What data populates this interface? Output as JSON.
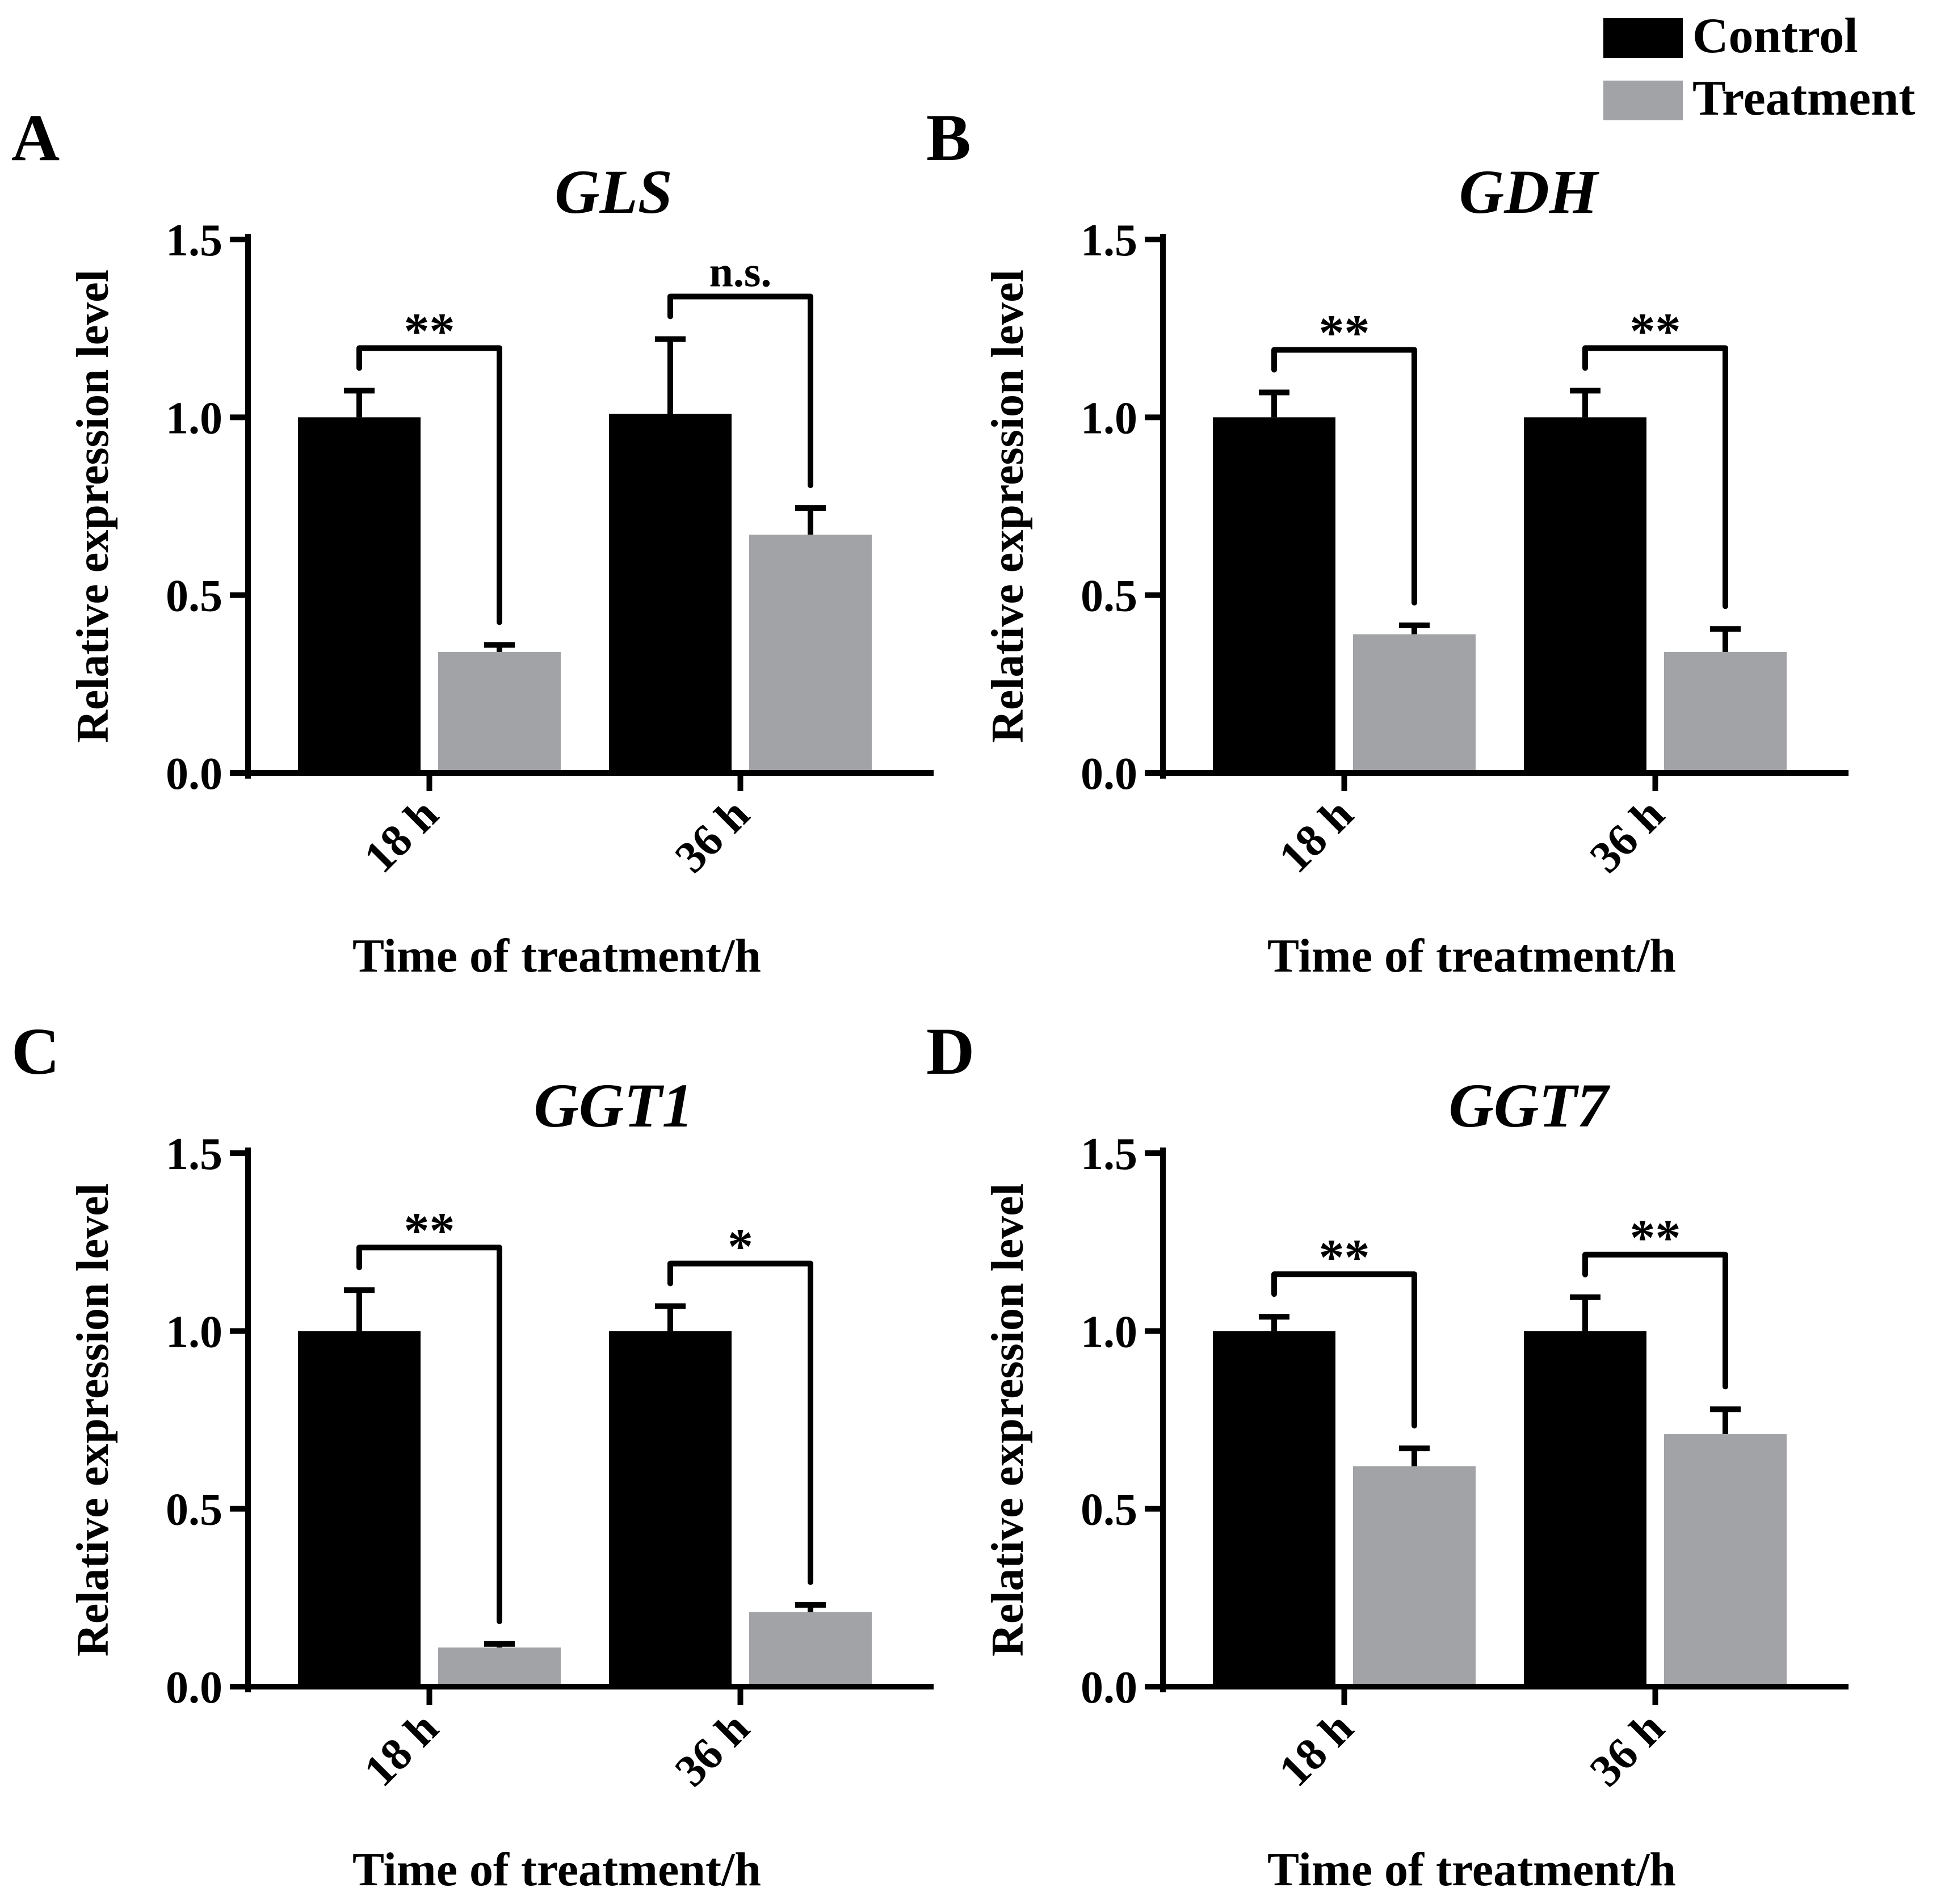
{
  "legend": {
    "placement": "top-right",
    "items": [
      {
        "label": "Control",
        "color": "#000000"
      },
      {
        "label": "Treatment",
        "color": "#a2a3a6"
      }
    ]
  },
  "chart_data": [
    {
      "type": "bar",
      "panel_label": "A",
      "title": "GLS",
      "xlabel": "Time of treatment/h",
      "ylabel": "Relative expression level",
      "categories": [
        "18 h",
        "36 h"
      ],
      "ylim": [
        0,
        1.5
      ],
      "yticks": [
        "0.0",
        "0.5",
        "1.0",
        "1.5"
      ],
      "series": [
        {
          "name": "Control",
          "values": [
            1.0,
            1.01
          ],
          "errors": [
            0.075,
            0.21
          ]
        },
        {
          "name": "Treatment",
          "values": [
            0.34,
            0.67
          ],
          "errors": [
            0.02,
            0.075
          ]
        }
      ],
      "significance": [
        "**",
        "n.s."
      ]
    },
    {
      "type": "bar",
      "panel_label": "B",
      "title": "GDH",
      "xlabel": "Time of treatment/h",
      "ylabel": "Relative expression level",
      "categories": [
        "18 h",
        "36 h"
      ],
      "ylim": [
        0,
        1.5
      ],
      "yticks": [
        "0.0",
        "0.5",
        "1.0",
        "1.5"
      ],
      "series": [
        {
          "name": "Control",
          "values": [
            1.0,
            1.0
          ],
          "errors": [
            0.07,
            0.075
          ]
        },
        {
          "name": "Treatment",
          "values": [
            0.39,
            0.34
          ],
          "errors": [
            0.025,
            0.065
          ]
        }
      ],
      "significance": [
        "**",
        "**"
      ]
    },
    {
      "type": "bar",
      "panel_label": "C",
      "title": "GGT1",
      "xlabel": "Time of treatment/h",
      "ylabel": "Relative expression level",
      "categories": [
        "18 h",
        "36 h"
      ],
      "ylim": [
        0,
        1.5
      ],
      "yticks": [
        "0.0",
        "0.5",
        "1.0",
        "1.5"
      ],
      "series": [
        {
          "name": "Control",
          "values": [
            1.0,
            1.0
          ],
          "errors": [
            0.115,
            0.07
          ]
        },
        {
          "name": "Treatment",
          "values": [
            0.11,
            0.21
          ],
          "errors": [
            0.01,
            0.02
          ]
        }
      ],
      "significance": [
        "**",
        "*"
      ]
    },
    {
      "type": "bar",
      "panel_label": "D",
      "title": "GGT7",
      "xlabel": "Time of treatment/h",
      "ylabel": "Relative expression level",
      "categories": [
        "18 h",
        "36 h"
      ],
      "ylim": [
        0,
        1.5
      ],
      "yticks": [
        "0.0",
        "0.5",
        "1.0",
        "1.5"
      ],
      "series": [
        {
          "name": "Control",
          "values": [
            1.0,
            1.0
          ],
          "errors": [
            0.04,
            0.095
          ]
        },
        {
          "name": "Treatment",
          "values": [
            0.62,
            0.71
          ],
          "errors": [
            0.05,
            0.07
          ]
        }
      ],
      "significance": [
        "**",
        "**"
      ]
    }
  ]
}
